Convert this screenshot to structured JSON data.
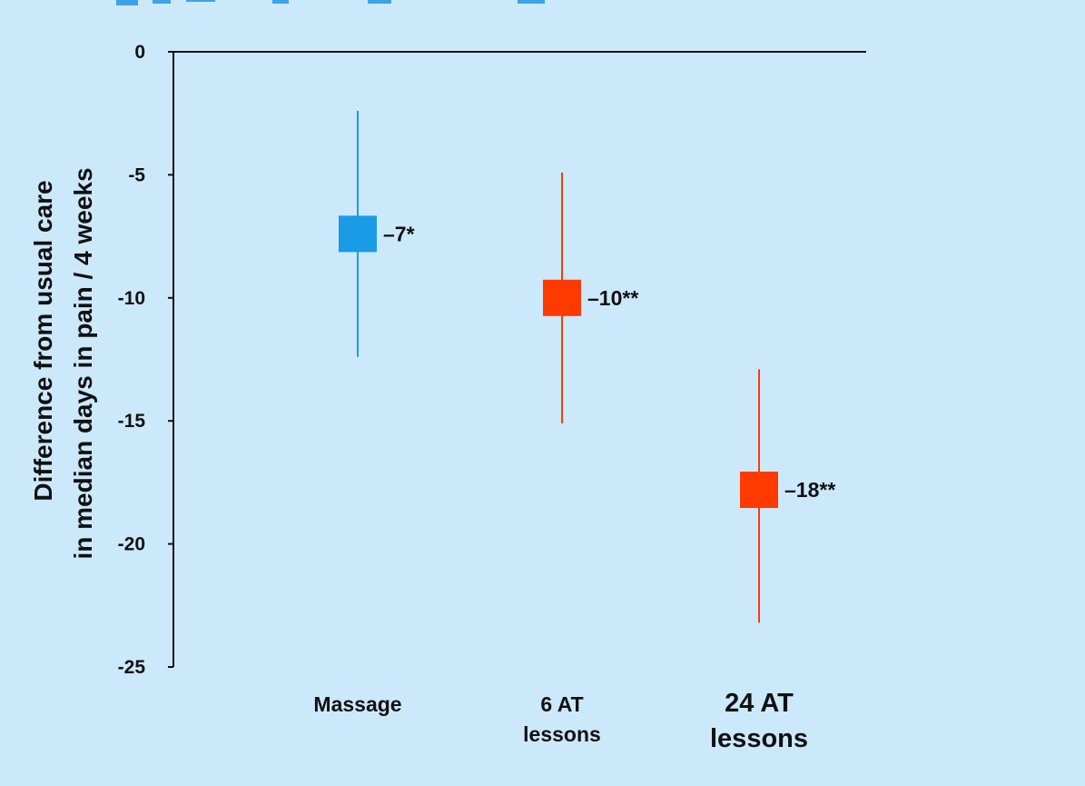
{
  "chart_data": {
    "type": "scatter",
    "ylim": [
      -25,
      0
    ],
    "yticks": [
      0,
      -5,
      -10,
      -15,
      -20,
      -25
    ],
    "ytick_labels": [
      "0",
      "-5",
      "-10",
      "-15",
      "-20",
      "-25"
    ],
    "ylabel_lines": [
      "Difference from usual care",
      "in median days in pain / 4 weeks"
    ],
    "categories": [
      {
        "lines": [
          "Massage"
        ]
      },
      {
        "lines": [
          "6 AT",
          "lessons"
        ]
      },
      {
        "lines": [
          "24 AT",
          "lessons"
        ]
      }
    ],
    "points": [
      {
        "category": "Massage",
        "value": -7.4,
        "ci_low": -12.4,
        "ci_high": -2.4,
        "label": "–7*",
        "color": "#1a9be6"
      },
      {
        "category": "6 AT lessons",
        "value": -10.0,
        "ci_low": -15.1,
        "ci_high": -4.9,
        "label": "–10**",
        "color": "#ff3a00"
      },
      {
        "category": "24 AT lessons",
        "value": -17.8,
        "ci_low": -23.2,
        "ci_high": -12.9,
        "label": "–18**",
        "color": "#ff3a00"
      }
    ],
    "grid": false
  }
}
